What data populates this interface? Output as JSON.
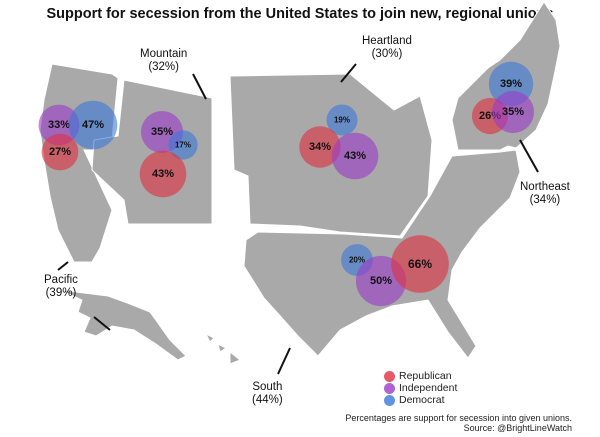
{
  "title": "Support for secession from the United States to join new, regional unions",
  "colors": {
    "land": "#a9a9a9",
    "border": "#ffffff",
    "Republican": "#e03040",
    "Independent": "#9b3bc8",
    "Democrat": "#3b78d8"
  },
  "regions": [
    {
      "name": "Mountain",
      "pct": "(32%)"
    },
    {
      "name": "Heartland",
      "pct": "(30%)"
    },
    {
      "name": "Northeast",
      "pct": "(34%)"
    },
    {
      "name": "Pacific",
      "pct": "(39%)"
    },
    {
      "name": "South",
      "pct": "(44%)"
    }
  ],
  "bubbles": [
    {
      "region": "Pacific",
      "party": "Independent",
      "value": 33,
      "label": "33%"
    },
    {
      "region": "Pacific",
      "party": "Democrat",
      "value": 47,
      "label": "47%"
    },
    {
      "region": "Pacific",
      "party": "Republican",
      "value": 27,
      "label": "27%"
    },
    {
      "region": "Mountain",
      "party": "Independent",
      "value": 35,
      "label": "35%"
    },
    {
      "region": "Mountain",
      "party": "Democrat",
      "value": 17,
      "label": "17%"
    },
    {
      "region": "Mountain",
      "party": "Republican",
      "value": 43,
      "label": "43%"
    },
    {
      "region": "Heartland",
      "party": "Democrat",
      "value": 19,
      "label": "19%"
    },
    {
      "region": "Heartland",
      "party": "Republican",
      "value": 34,
      "label": "34%"
    },
    {
      "region": "Heartland",
      "party": "Independent",
      "value": 43,
      "label": "43%"
    },
    {
      "region": "Northeast",
      "party": "Democrat",
      "value": 39,
      "label": "39%"
    },
    {
      "region": "Northeast",
      "party": "Republican",
      "value": 26,
      "label": "26%"
    },
    {
      "region": "Northeast",
      "party": "Independent",
      "value": 35,
      "label": "35%"
    },
    {
      "region": "South",
      "party": "Democrat",
      "value": 20,
      "label": "20%"
    },
    {
      "region": "South",
      "party": "Independent",
      "value": 50,
      "label": "50%"
    },
    {
      "region": "South",
      "party": "Republican",
      "value": 66,
      "label": "66%"
    }
  ],
  "legend": [
    {
      "party": "Republican",
      "label": "Republican"
    },
    {
      "party": "Independent",
      "label": "Independent"
    },
    {
      "party": "Democrat",
      "label": "Democrat"
    }
  ],
  "footnote": {
    "line1": "Percentages are support for secession into given unions.",
    "line2": "Source: @BrightLineWatch"
  }
}
